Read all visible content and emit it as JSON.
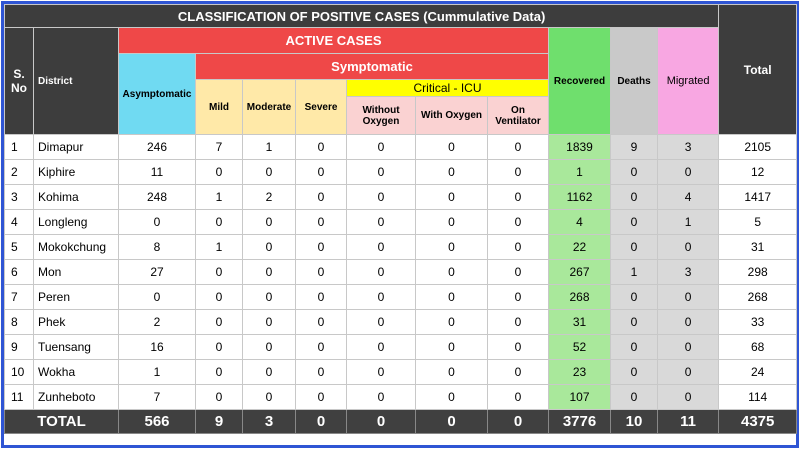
{
  "title": "CLASSIFICATION OF POSITIVE CASES (Cummulative Data)",
  "headers": {
    "sno": "S. No",
    "district": "District",
    "active": "ACTIVE CASES",
    "asymptomatic": "Asymptomatic",
    "symptomatic": "Symptomatic",
    "mild": "Mild",
    "moderate": "Moderate",
    "severe": "Severe",
    "critical": "Critical - ICU",
    "without_oxygen": "Without Oxygen",
    "with_oxygen": "With Oxygen",
    "on_ventilator": "On Ventilator",
    "recovered": "Recovered",
    "deaths": "Deaths",
    "migrated": "Migrated",
    "total": "Total"
  },
  "rows": [
    [
      1,
      "Dimapur",
      246,
      7,
      1,
      0,
      0,
      0,
      0,
      1839,
      9,
      3,
      2105
    ],
    [
      2,
      "Kiphire",
      11,
      0,
      0,
      0,
      0,
      0,
      0,
      1,
      0,
      0,
      12
    ],
    [
      3,
      "Kohima",
      248,
      1,
      2,
      0,
      0,
      0,
      0,
      1162,
      0,
      4,
      1417
    ],
    [
      4,
      "Longleng",
      0,
      0,
      0,
      0,
      0,
      0,
      0,
      4,
      0,
      1,
      5
    ],
    [
      5,
      "Mokokchung",
      8,
      1,
      0,
      0,
      0,
      0,
      0,
      22,
      0,
      0,
      31
    ],
    [
      6,
      "Mon",
      27,
      0,
      0,
      0,
      0,
      0,
      0,
      267,
      1,
      3,
      298
    ],
    [
      7,
      "Peren",
      0,
      0,
      0,
      0,
      0,
      0,
      0,
      268,
      0,
      0,
      268
    ],
    [
      8,
      "Phek",
      2,
      0,
      0,
      0,
      0,
      0,
      0,
      31,
      0,
      0,
      33
    ],
    [
      9,
      "Tuensang",
      16,
      0,
      0,
      0,
      0,
      0,
      0,
      52,
      0,
      0,
      68
    ],
    [
      10,
      "Wokha",
      1,
      0,
      0,
      0,
      0,
      0,
      0,
      23,
      0,
      0,
      24
    ],
    [
      11,
      "Zunheboto",
      7,
      0,
      0,
      0,
      0,
      0,
      0,
      107,
      0,
      0,
      114
    ]
  ],
  "total_row": [
    "TOTAL",
    566,
    9,
    3,
    0,
    0,
    0,
    0,
    3776,
    10,
    11,
    4375
  ]
}
